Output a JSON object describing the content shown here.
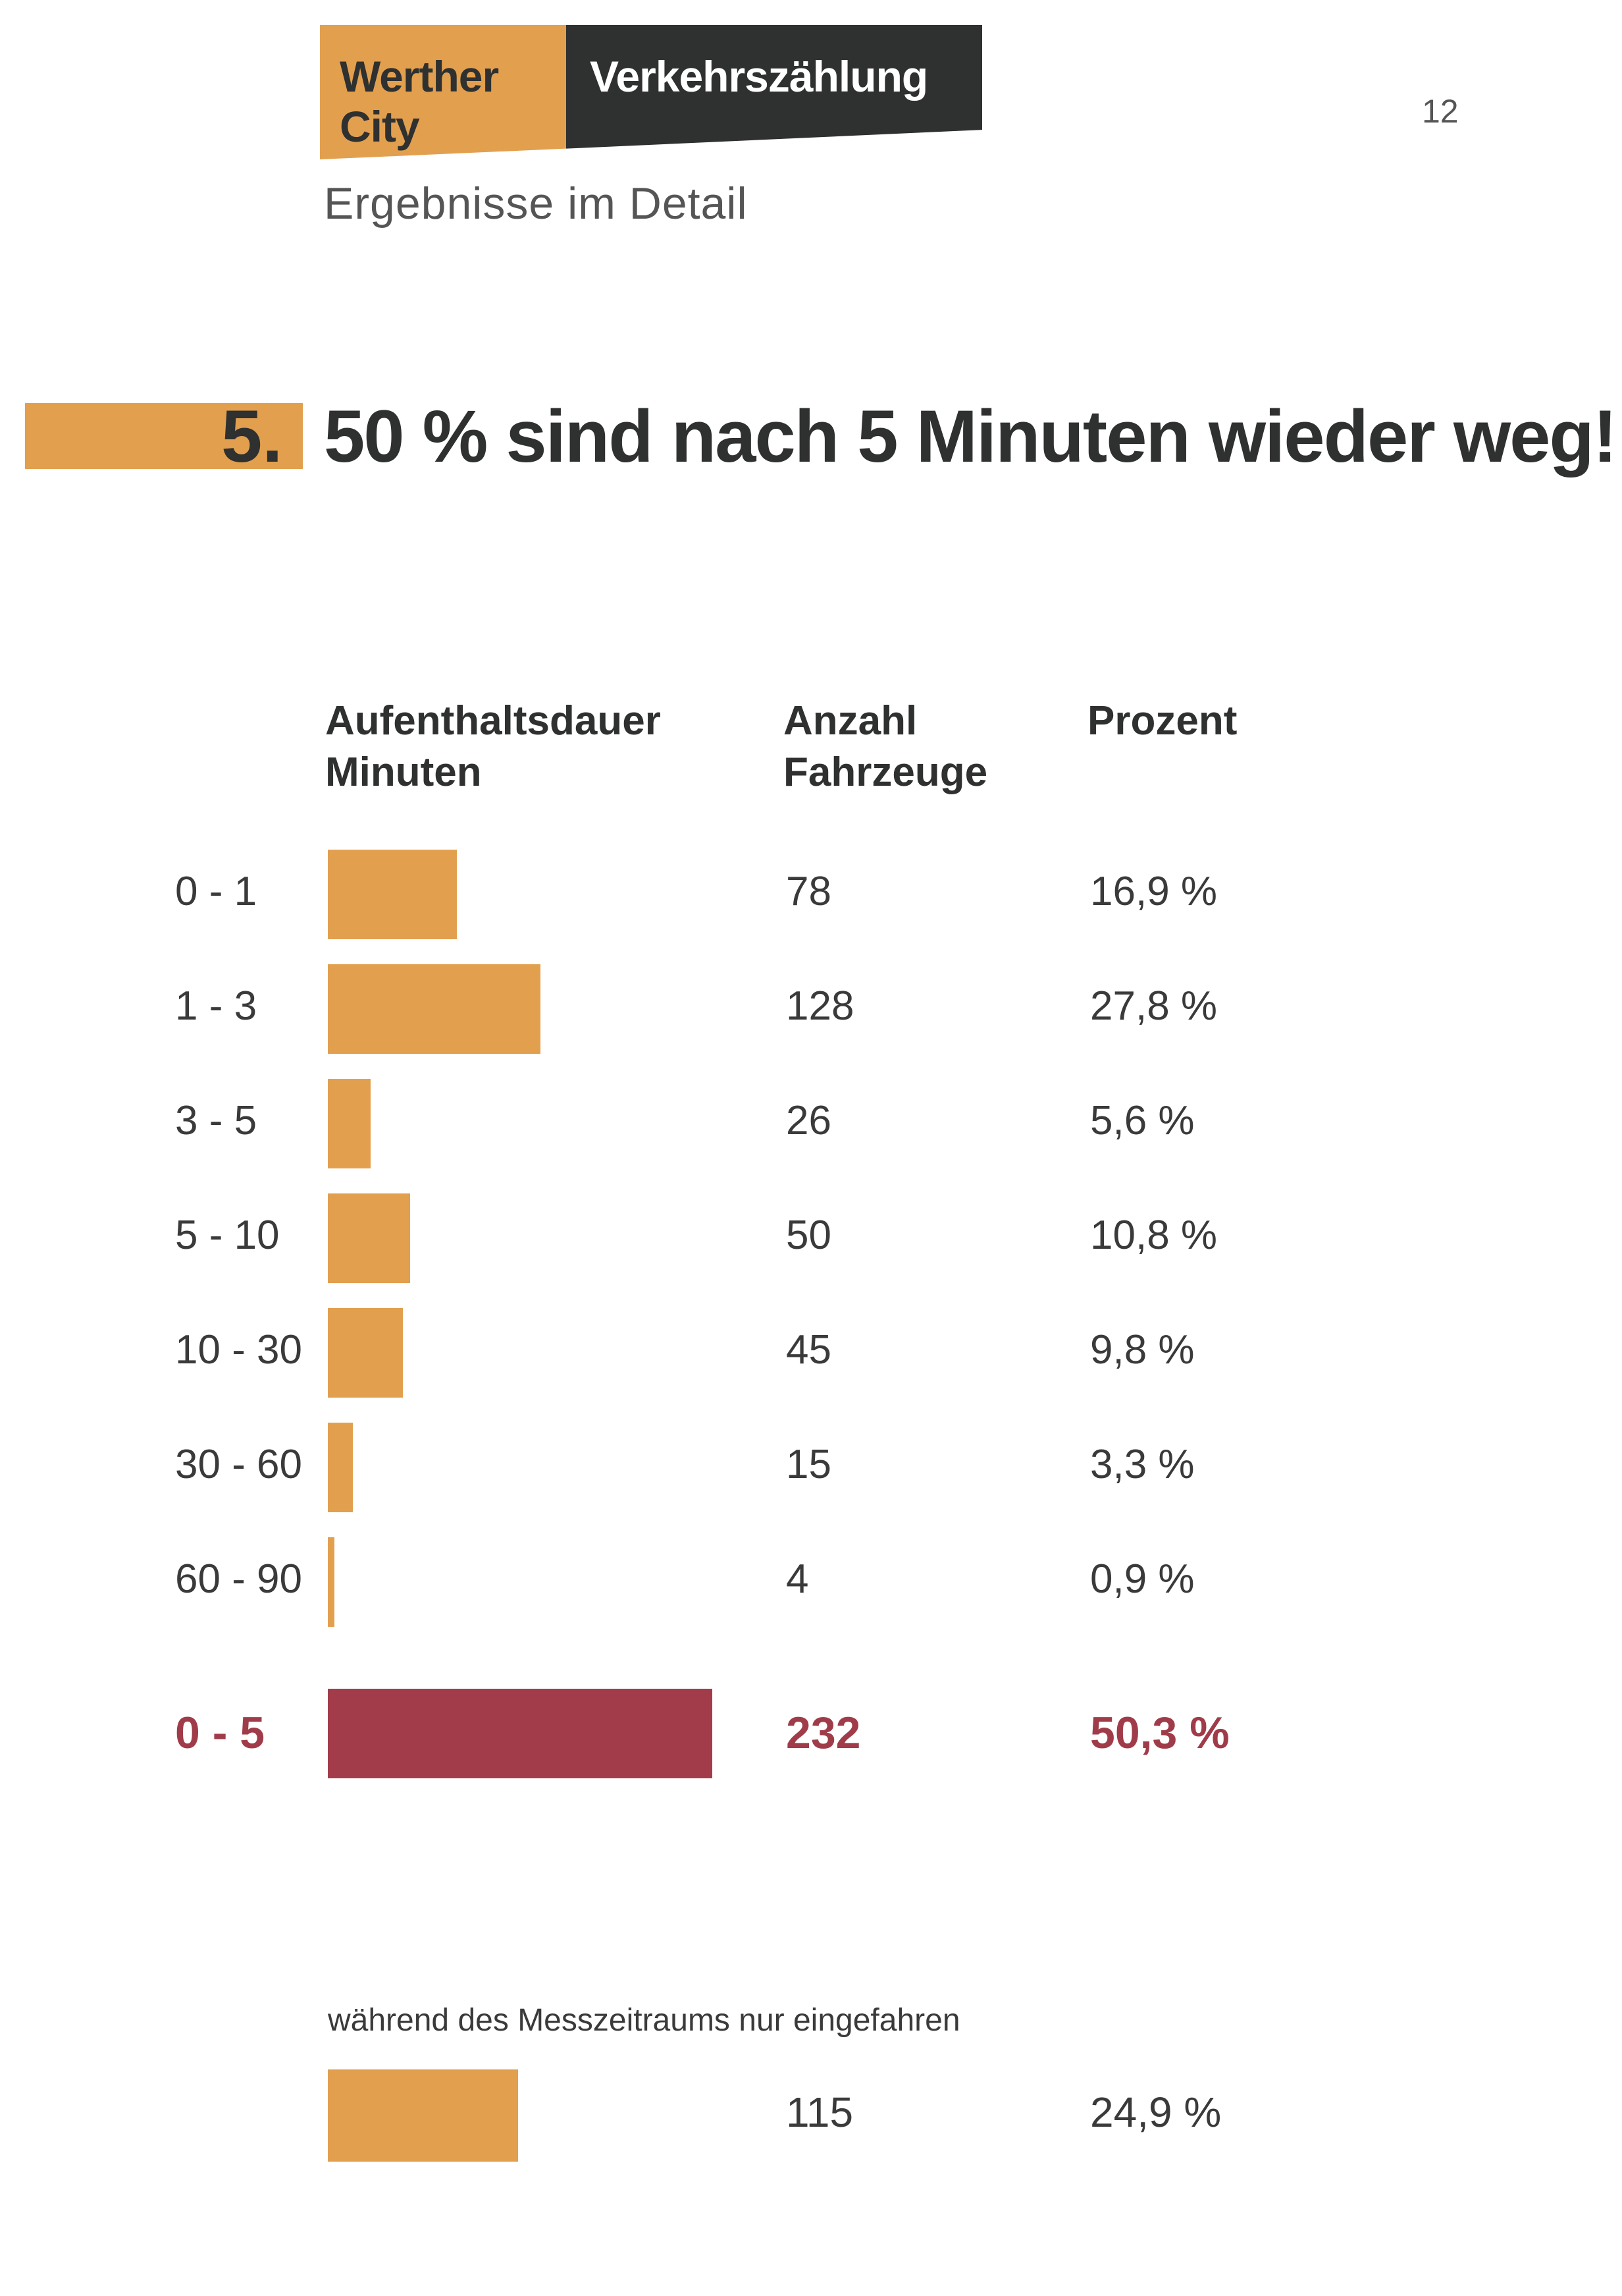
{
  "header": {
    "brand_left": "Werther City",
    "brand_right": "Verkehrszählung",
    "page_number": "12",
    "subheading": "Ergebnisse im Detail"
  },
  "title": {
    "number": "5.",
    "text": "50 % sind nach 5 Minuten wieder weg!"
  },
  "columns": {
    "duration_line1": "Aufenthaltsdauer",
    "duration_line2": "Minuten",
    "count_line1": "Anzahl",
    "count_line2": "Fahrzeuge",
    "percent": "Prozent"
  },
  "rows": [
    {
      "range": "0 - 1",
      "count": "78",
      "percent": "16,9 %",
      "share": 16.9
    },
    {
      "range": "1 - 3",
      "count": "128",
      "percent": "27,8 %",
      "share": 27.8
    },
    {
      "range": "3 - 5",
      "count": "26",
      "percent": "5,6 %",
      "share": 5.6
    },
    {
      "range": "5 - 10",
      "count": "50",
      "percent": "10,8 %",
      "share": 10.8
    },
    {
      "range": "10 - 30",
      "count": "45",
      "percent": "9,8 %",
      "share": 9.8
    },
    {
      "range": "30 - 60",
      "count": "15",
      "percent": "3,3 %",
      "share": 3.3
    },
    {
      "range": "60 - 90",
      "count": "4",
      "percent": "0,9 %",
      "share": 0.9
    }
  ],
  "summary": {
    "range": "0 - 5",
    "count": "232",
    "percent": "50,3 %",
    "share": 50.3
  },
  "note": {
    "text": "während des Messzeitraums nur eingefahren",
    "count": "115",
    "percent": "24,9 %",
    "share": 24.9
  },
  "colors": {
    "bar": "#e2a04f",
    "highlight": "#a33c4a",
    "dark": "#2f3030"
  }
}
